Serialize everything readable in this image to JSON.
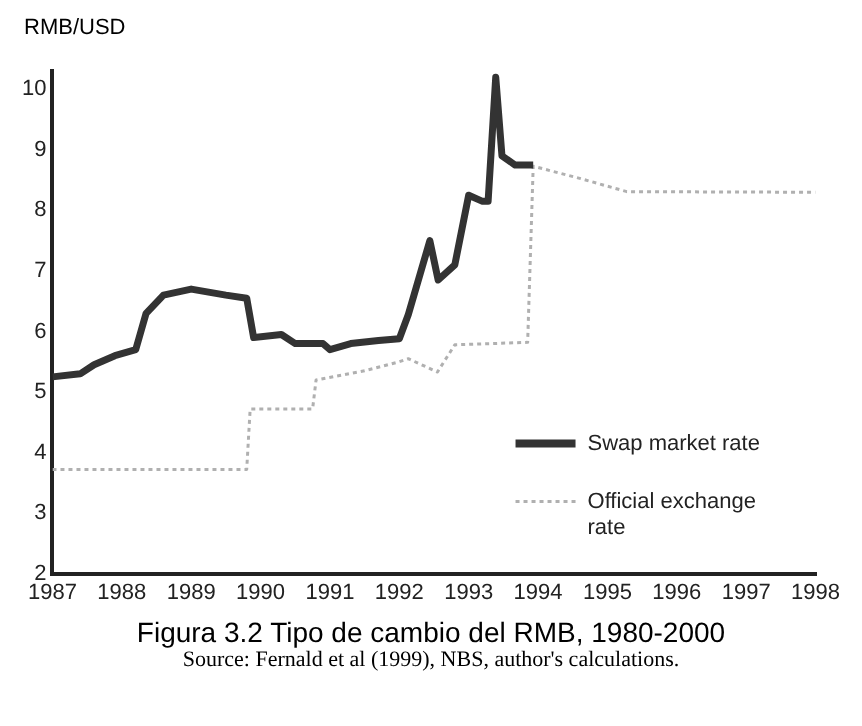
{
  "chart_data": {
    "type": "line",
    "title": "Figura 3.2 Tipo de cambio del RMB, 1980-2000",
    "ylabel": "RMB/USD",
    "annotations": [
      "Source: Fernald et al (1999), NBS, author's calculations."
    ],
    "xlim": [
      1987,
      1998
    ],
    "xticks": [
      1987,
      1988,
      1989,
      1990,
      1991,
      1992,
      1993,
      1994,
      1995,
      1996,
      1997,
      1998
    ],
    "ylim": [
      2,
      10.3
    ],
    "yticks": [
      2,
      3,
      4,
      5,
      6,
      7,
      8,
      9,
      10
    ],
    "grid": false,
    "legend": "bottom right",
    "marker": "none",
    "series": [
      {
        "name": "Swap market rate",
        "color": "#333333",
        "line_style": "solid",
        "x": [
          1987,
          1987.4,
          1987.6,
          1987.9,
          1988.2,
          1988.35,
          1988.6,
          1989,
          1989.5,
          1989.8,
          1989.9,
          1990.3,
          1990.5,
          1990.9,
          1991,
          1991.3,
          1991.7,
          1992,
          1992.13,
          1992.44,
          1992.56,
          1992.8,
          1993,
          1993.2,
          1993.28,
          1993.39,
          1993.48,
          1993.67,
          1993.93
        ],
        "values": [
          5.25,
          5.3,
          5.45,
          5.6,
          5.7,
          6.3,
          6.6,
          6.7,
          6.6,
          6.55,
          5.9,
          5.95,
          5.8,
          5.8,
          5.7,
          5.8,
          5.85,
          5.88,
          6.28,
          7.5,
          6.85,
          7.1,
          8.25,
          8.15,
          8.15,
          10.2,
          8.9,
          8.75,
          8.75
        ]
      },
      {
        "name": "Official exchange rate",
        "color": "#b0b0b0",
        "line_style": "dotted",
        "x": [
          1987,
          1989.8,
          1989.85,
          1990.75,
          1990.8,
          1991.5,
          1992,
          1992.13,
          1992.55,
          1992.8,
          1993.85,
          1993.93,
          1994.6,
          1995.28,
          1998
        ],
        "values": [
          3.72,
          3.72,
          4.72,
          4.72,
          5.2,
          5.35,
          5.5,
          5.55,
          5.33,
          5.78,
          5.82,
          8.73,
          8.53,
          8.31,
          8.3
        ]
      }
    ]
  }
}
